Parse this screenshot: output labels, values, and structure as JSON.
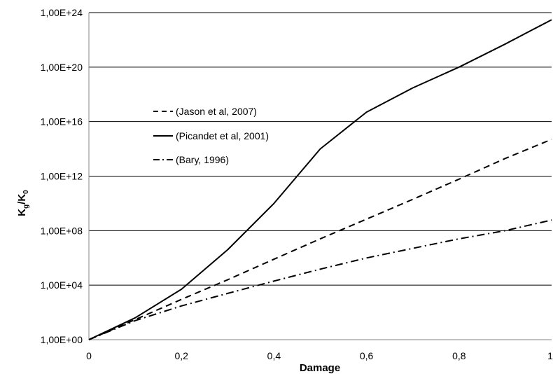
{
  "chart_data": {
    "type": "line",
    "title": "",
    "xlabel": "Damage",
    "ylabel": {
      "main": "K",
      "sub1": "g",
      "sep": "/K",
      "sub2": "0"
    },
    "xlim": [
      0,
      1
    ],
    "ylim": [
      1,
      1e+24
    ],
    "y_scale": "log10",
    "grid": "horizontal",
    "legend_position": "center-left",
    "x_ticks": [
      {
        "value": 0,
        "label": "0"
      },
      {
        "value": 0.2,
        "label": "0,2"
      },
      {
        "value": 0.4,
        "label": "0,4"
      },
      {
        "value": 0.6,
        "label": "0,6"
      },
      {
        "value": 0.8,
        "label": "0,8"
      },
      {
        "value": 1,
        "label": "1"
      }
    ],
    "y_ticks": [
      {
        "value": 1,
        "label": "1,00E+00"
      },
      {
        "value": 10000.0,
        "label": "1,00E+04"
      },
      {
        "value": 100000000.0,
        "label": "1,00E+08"
      },
      {
        "value": 1000000000000.0,
        "label": "1,00E+12"
      },
      {
        "value": 1e+16,
        "label": "1,00E+16"
      },
      {
        "value": 1e+20,
        "label": "1,00E+20"
      },
      {
        "value": 1e+24,
        "label": "1,00E+24"
      }
    ],
    "x": [
      0,
      0.1,
      0.2,
      0.3,
      0.4,
      0.5,
      0.6,
      0.7,
      0.8,
      0.9,
      1.0
    ],
    "series": [
      {
        "name": "(Jason et al, 2007)",
        "style": "dashed",
        "values": [
          1,
          30,
          900,
          25000.0,
          800000.0,
          25000000.0,
          700000000.0,
          20000000000.0,
          600000000000.0,
          20000000000000.0,
          500000000000000.0
        ]
      },
      {
        "name": "(Picandet et al, 2001)",
        "style": "solid",
        "values": [
          1,
          40,
          5000,
          4000000.0,
          10000000000.0,
          100000000000000.0,
          5e+16,
          3e+18,
          1e+20,
          5e+21,
          3e+23
        ]
      },
      {
        "name": "(Bary, 1996)",
        "style": "dashdot",
        "values": [
          1,
          25,
          300,
          2500,
          20000.0,
          150000.0,
          1000000.0,
          5000000.0,
          25000000.0,
          100000000.0,
          600000000.0
        ]
      }
    ],
    "colors": {
      "line": "#000000",
      "grid": "#000000",
      "axis": "#868686"
    }
  }
}
